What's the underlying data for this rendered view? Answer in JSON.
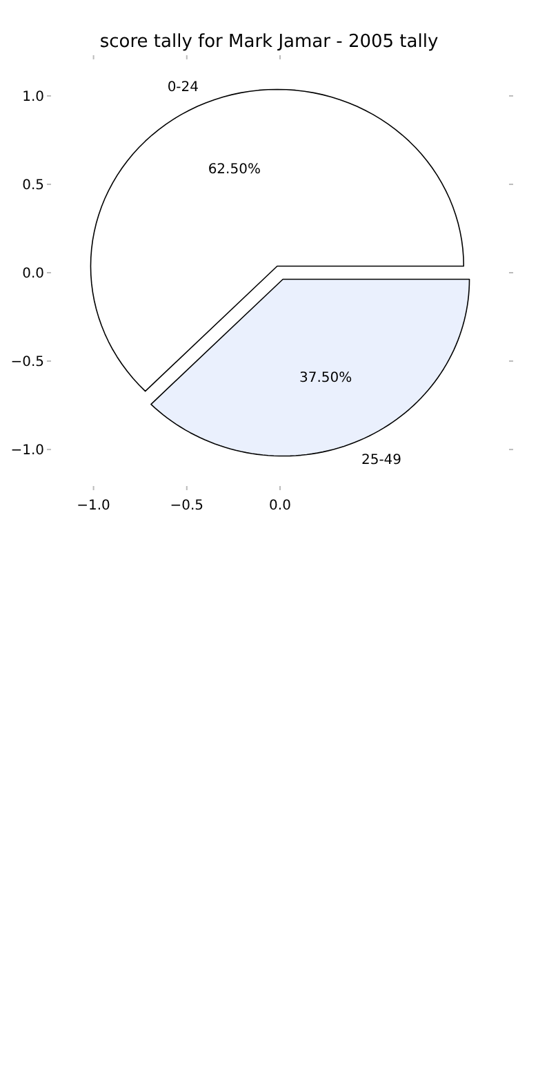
{
  "chart_data": {
    "type": "pie",
    "title": "score tally for Mark Jamar - 2005 tally",
    "categories": [
      "0-24",
      "25-49"
    ],
    "values": [
      62.5,
      37.5
    ],
    "colors": [
      "#ffffff",
      "#eaf0fd"
    ],
    "value_labels": [
      "62.50%",
      "37.50%"
    ],
    "annotations": [
      "−1.0",
      "−0.5",
      "0.0",
      "−1.0",
      "−0.5",
      "0.0",
      "0.5",
      "1.0"
    ]
  }
}
